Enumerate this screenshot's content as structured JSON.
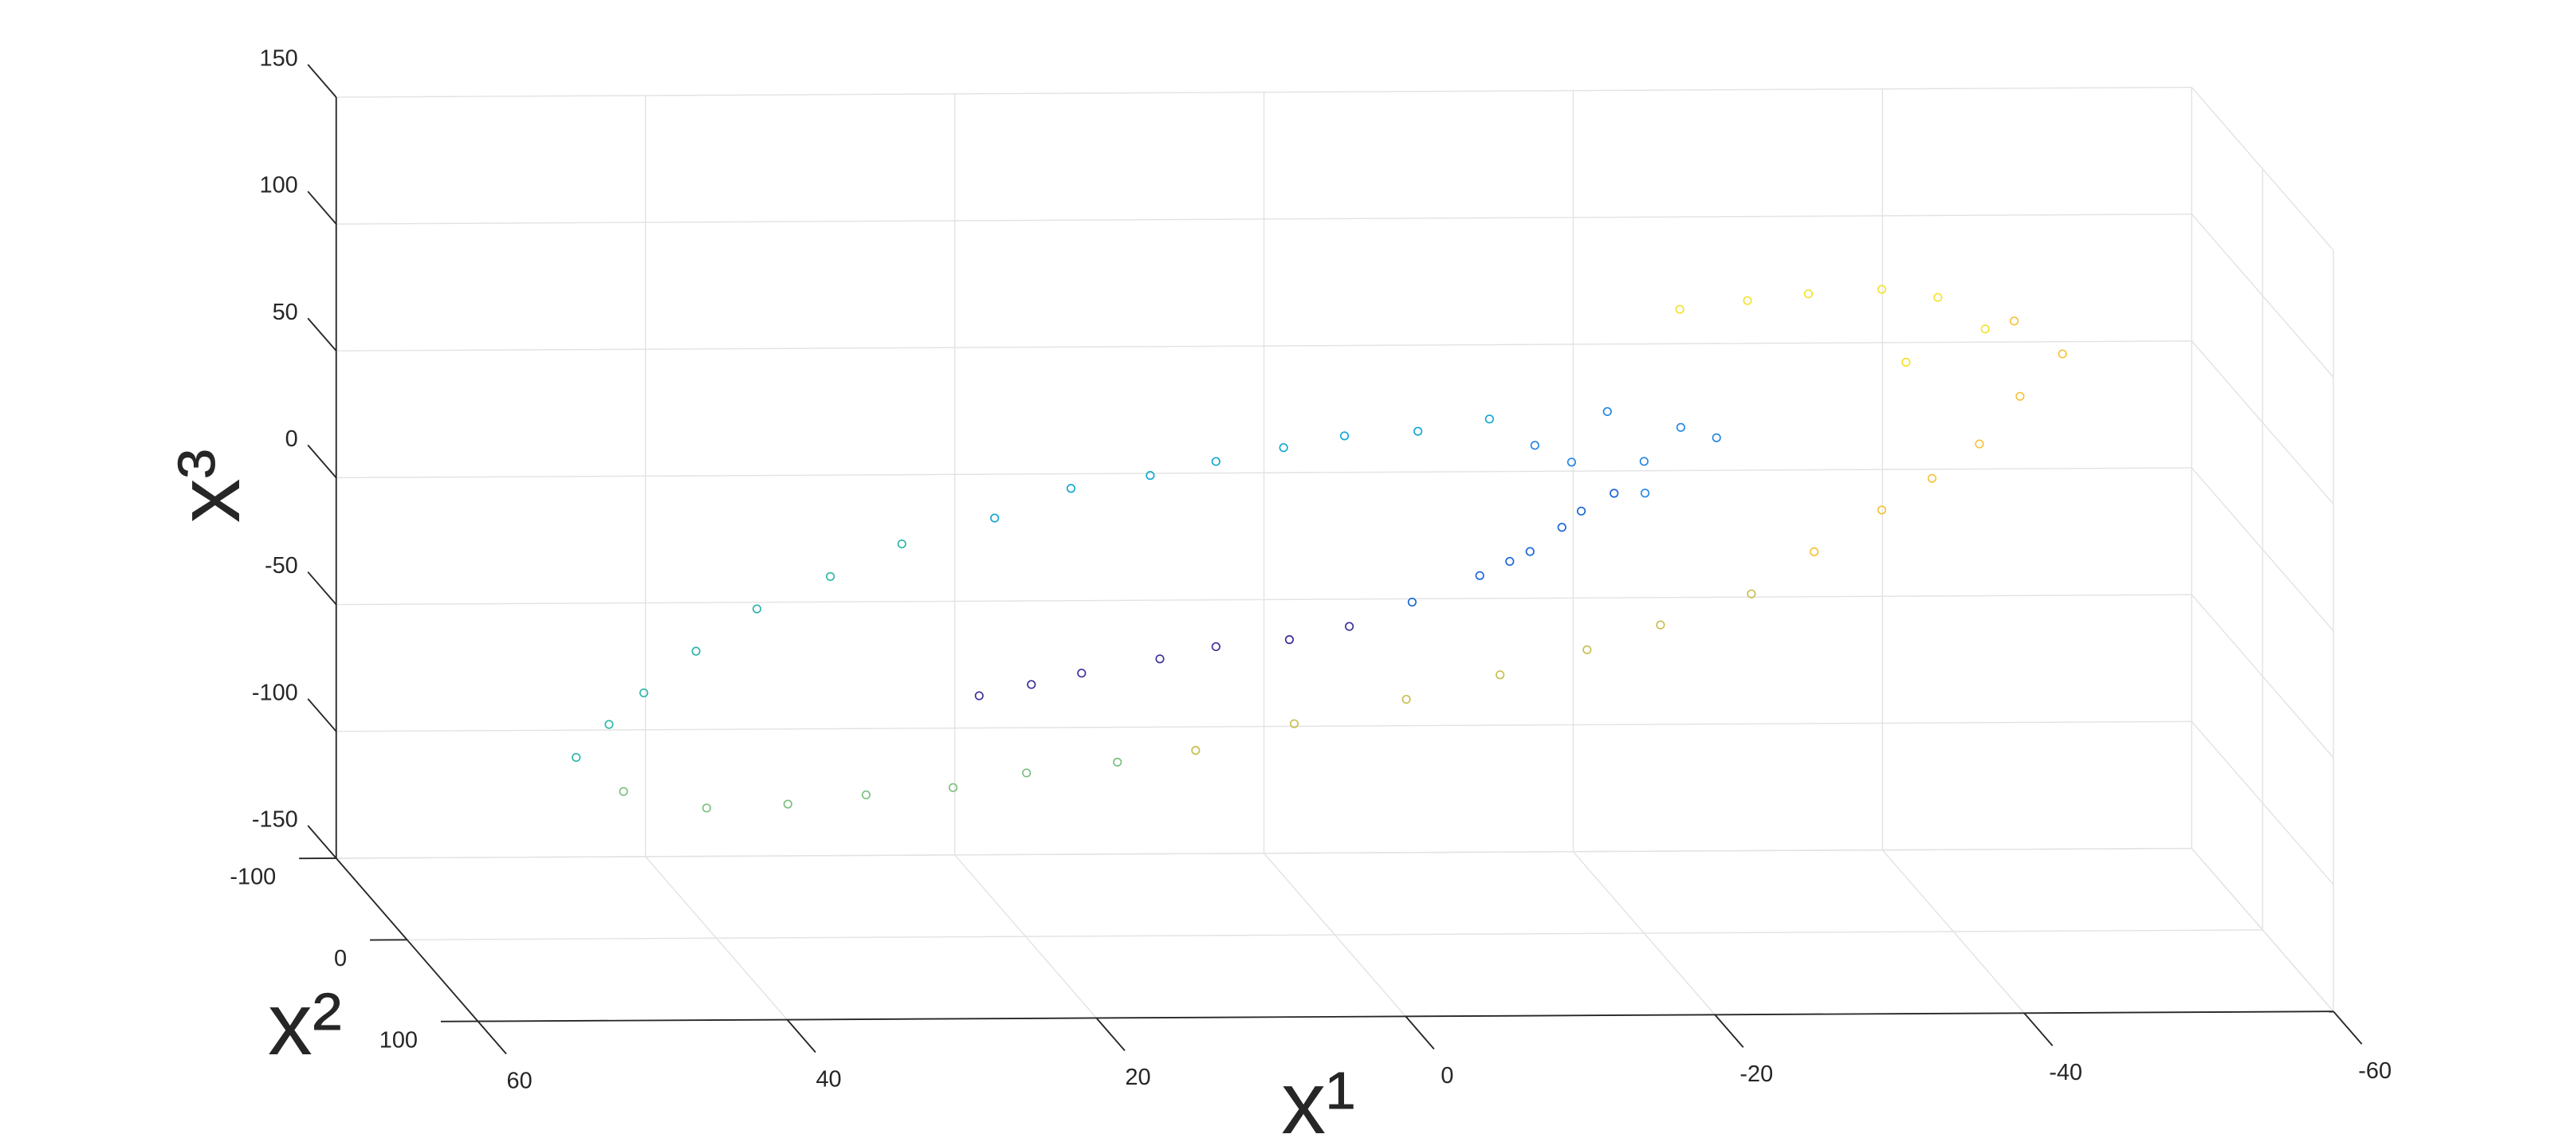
{
  "chart_data": {
    "type": "scatter3d",
    "xlabel": "x¹",
    "ylabel": "x²",
    "zlabel": "x³",
    "xlim": [
      -60,
      60
    ],
    "ylim": [
      -100,
      100
    ],
    "zlim": [
      -150,
      150
    ],
    "xticks": [
      -60,
      -40,
      -20,
      0,
      20,
      40,
      60
    ],
    "yticks": [
      -100,
      0,
      100
    ],
    "zticks": [
      -150,
      -100,
      -50,
      0,
      50,
      100,
      150
    ],
    "grid": true,
    "series": [
      {
        "color": "#3a2f9a",
        "x": [
          23,
          21,
          15,
          12,
          7,
          5,
          -3
        ],
        "y": [
          0,
          30,
          -30,
          15,
          -15,
          45,
          -45
        ],
        "z": [
          -55,
          -41,
          -56,
          -36,
          -41,
          -19,
          -43
        ]
      },
      {
        "color": "#1764d6",
        "x": [
          -5,
          -8,
          -14,
          -14,
          -12,
          -16,
          -18
        ],
        "y": [
          0,
          30,
          -30,
          15,
          -15,
          45,
          -45
        ],
        "z": [
          -19,
          1,
          -9,
          15,
          -8,
          38,
          2
        ]
      },
      {
        "color": "#2385e0",
        "x": [
          -20,
          -21,
          -19,
          -24,
          -16,
          -18,
          -15
        ],
        "y": [
          0,
          30,
          -30,
          15,
          -15,
          45,
          -45
        ],
        "z": [
          36,
          59,
          46,
          50,
          31,
          38,
          28
        ]
      },
      {
        "color": "#12a7d0",
        "x": [
          -10,
          -4,
          -2,
          4,
          7,
          14,
          15,
          22
        ],
        "y": [
          0,
          30,
          -30,
          15,
          -15,
          45,
          -45,
          0
        ],
        "z": [
          53,
          58,
          37,
          47,
          32,
          46,
          12,
          15
        ]
      },
      {
        "color": "#2ab6a8",
        "x": [
          28,
          34,
          36,
          42,
          44,
          49,
          47
        ],
        "y": [
          0,
          30,
          -30,
          15,
          -15,
          45,
          -45
        ],
        "z": [
          5,
          2,
          -30,
          -32,
          -58,
          -51,
          -93
        ]
      },
      {
        "color": "#7bbf7e",
        "x": [
          46,
          42,
          34,
          31,
          24,
          22,
          12
        ],
        "y": [
          0,
          30,
          -30,
          15,
          -15,
          45,
          -45
        ],
        "z": [
          -92,
          -89,
          -107,
          -89,
          -96,
          -71,
          -96
        ]
      },
      {
        "color": "#c8be52",
        "x": [
          9,
          4,
          -6,
          -10,
          -17,
          -19,
          -29
        ],
        "y": [
          0,
          30,
          -30,
          15,
          -15,
          45,
          -45
        ],
        "z": [
          -77,
          -57,
          -67,
          -43,
          -43,
          -14,
          -31
        ]
      },
      {
        "color": "#f7c23c",
        "x": [
          -31,
          -34,
          -40,
          -41,
          -45,
          -45,
          -46
        ],
        "y": [
          0,
          30,
          -30,
          15,
          -15,
          45,
          -45
        ],
        "z": [
          0,
          26,
          19,
          47,
          56,
          92,
          76
        ]
      },
      {
        "color": "#f5e22c",
        "x": [
          -39,
          -34,
          -32,
          -26,
          -23,
          -40,
          -39
        ],
        "y": [
          0,
          30,
          -30,
          15,
          -15,
          45,
          -45
        ],
        "z": [
          100,
          113,
          92,
          104,
          91,
          102,
          60
        ]
      }
    ]
  }
}
